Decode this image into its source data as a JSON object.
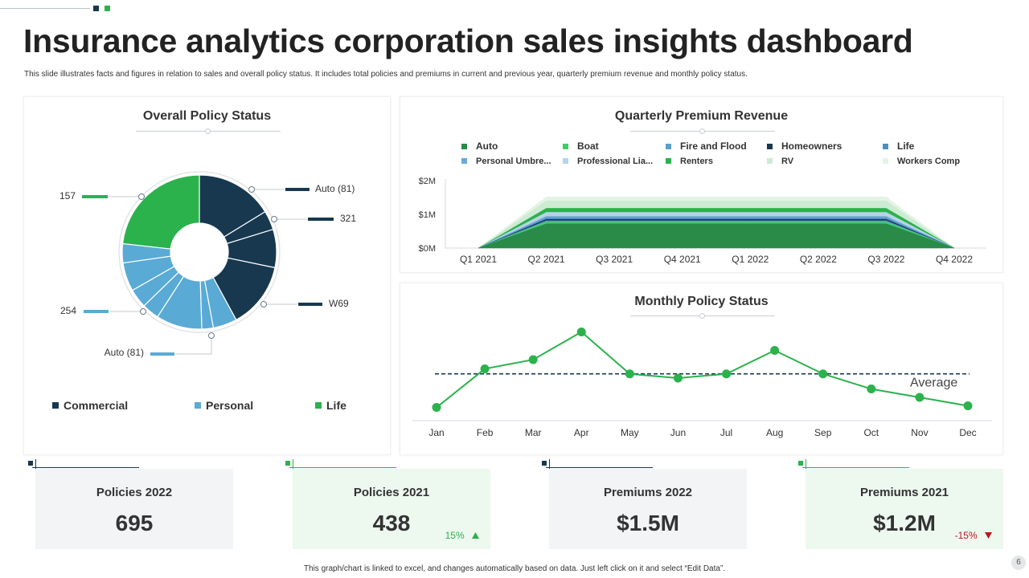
{
  "header": {
    "title": "Insurance analytics corporation sales insights dashboard",
    "subtitle": "This slide illustrates facts and figures in relation to sales and overall policy status. It includes total policies and premiums in current and previous year, quarterly premium revenue and monthly policy status."
  },
  "colors": {
    "navy": "#17384f",
    "blue": "#5aaad6",
    "green": "#2bb24c",
    "red": "#c0141c"
  },
  "chart_data": [
    {
      "id": "overall-policy-status",
      "type": "pie",
      "title": "Overall Policy Status",
      "legend": [
        "Commercial",
        "Personal",
        "Life"
      ],
      "legend_placement": "bottom",
      "slices": [
        {
          "group": "Commercial",
          "value": 81
        },
        {
          "group": "Commercial",
          "value": 20
        },
        {
          "group": "Commercial",
          "value": 40
        },
        {
          "group": "Commercial",
          "value": 69
        },
        {
          "group": "Personal",
          "value": 25
        },
        {
          "group": "Personal",
          "value": 12
        },
        {
          "group": "Personal",
          "value": 48
        },
        {
          "group": "Personal",
          "value": 18
        },
        {
          "group": "Personal",
          "value": 20
        },
        {
          "group": "Personal",
          "value": 30
        },
        {
          "group": "Personal",
          "value": 20
        },
        {
          "group": "Life",
          "value": 116
        }
      ],
      "callouts": [
        {
          "text": "Auto (81)",
          "side": "right"
        },
        {
          "text": "321",
          "side": "right"
        },
        {
          "text": "W69",
          "side": "right"
        },
        {
          "text": "157",
          "side": "left"
        },
        {
          "text": "254",
          "side": "left"
        },
        {
          "text": "Auto (81)",
          "side": "left"
        }
      ]
    },
    {
      "id": "quarterly-premium-revenue",
      "type": "area",
      "title": "Quarterly Premium Revenue",
      "categories": [
        "Q1 2021",
        "Q2 2021",
        "Q3 2021",
        "Q4 2021",
        "Q1 2022",
        "Q2 2022",
        "Q3 2022",
        "Q4 2022"
      ],
      "y_ticks": [
        "$2M",
        "$1M",
        "$0M"
      ],
      "ylim": [
        0,
        2
      ],
      "series": [
        {
          "name": "Auto",
          "color": "#2a8a48",
          "values": [
            0,
            0.72,
            0.72,
            0.72,
            0.72,
            0.72,
            0.72,
            0
          ]
        },
        {
          "name": "Boat",
          "color": "#3fcf66",
          "values": [
            0,
            0.05,
            0.05,
            0.05,
            0.05,
            0.05,
            0.05,
            0
          ]
        },
        {
          "name": "Fire and Flood",
          "color": "#5b9fc8",
          "values": [
            0,
            0.04,
            0.04,
            0.04,
            0.04,
            0.04,
            0.04,
            0
          ]
        },
        {
          "name": "Homeowners",
          "color": "#17384f",
          "values": [
            0,
            0.04,
            0.04,
            0.04,
            0.04,
            0.04,
            0.04,
            0
          ]
        },
        {
          "name": "Life",
          "color": "#4d8fbf",
          "values": [
            0,
            0.04,
            0.04,
            0.04,
            0.04,
            0.04,
            0.04,
            0
          ]
        },
        {
          "name": "Personal Umbre...",
          "color": "#6aaad4",
          "values": [
            0,
            0.05,
            0.05,
            0.05,
            0.05,
            0.05,
            0.05,
            0
          ]
        },
        {
          "name": "Professional Lia...",
          "color": "#b8d3e8",
          "values": [
            0,
            0.12,
            0.12,
            0.12,
            0.12,
            0.12,
            0.12,
            0
          ]
        },
        {
          "name": "Renters",
          "color": "#2bb24c",
          "values": [
            0,
            0.12,
            0.12,
            0.12,
            0.12,
            0.12,
            0.12,
            0
          ]
        },
        {
          "name": "RV",
          "color": "#cdebd2",
          "values": [
            0,
            0.22,
            0.22,
            0.22,
            0.22,
            0.22,
            0.22,
            0
          ]
        },
        {
          "name": "Workers Comp",
          "color": "#e3f4e6",
          "values": [
            0,
            0.12,
            0.12,
            0.12,
            0.12,
            0.12,
            0.12,
            0
          ]
        }
      ]
    },
    {
      "id": "monthly-policy-status",
      "type": "line",
      "title": "Monthly Policy Status",
      "categories": [
        "Jan",
        "Feb",
        "Mar",
        "Apr",
        "May",
        "Jun",
        "Jul",
        "Aug",
        "Sep",
        "Oct",
        "Nov",
        "Dec"
      ],
      "values": [
        10,
        56,
        67,
        100,
        50,
        45,
        50,
        78,
        50,
        32,
        22,
        12
      ],
      "ylim": [
        0,
        110
      ],
      "average": 50,
      "average_label": "Average"
    }
  ],
  "kpis": [
    {
      "label": "Policies 2022",
      "value": "695",
      "change": "",
      "trend": "",
      "theme": "navy"
    },
    {
      "label": "Policies 2021",
      "value": "438",
      "change": "15%",
      "trend": "up",
      "theme": "green"
    },
    {
      "label": "Premiums 2022",
      "value": "$1.5M",
      "change": "",
      "trend": "",
      "theme": "navy"
    },
    {
      "label": "Premiums 2021",
      "value": "$1.2M",
      "change": "-15%",
      "trend": "down",
      "theme": "green"
    }
  ],
  "footer": {
    "note": "This graph/chart is linked to excel, and changes automatically based on data. Just left click on it and select “Edit Data”.",
    "page_number": "6"
  }
}
